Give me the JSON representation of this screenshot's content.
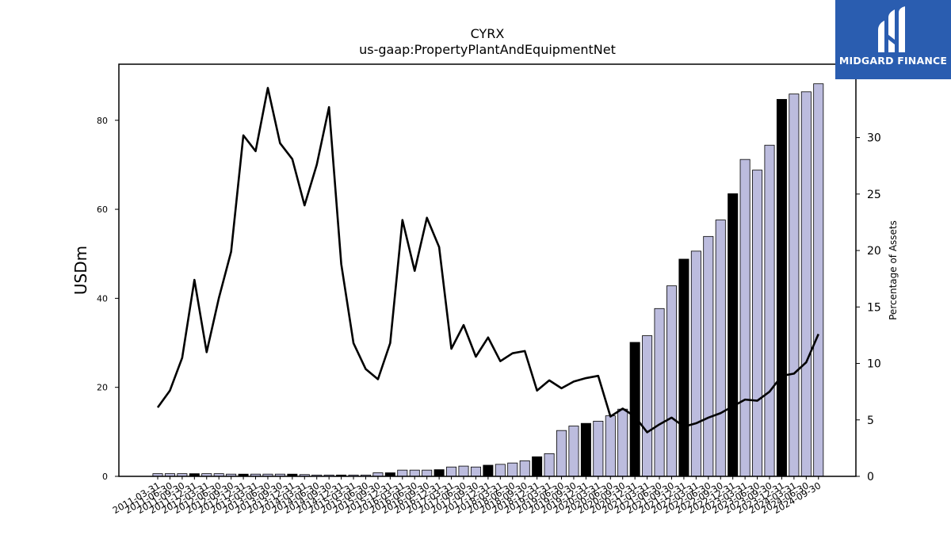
{
  "chart_data": {
    "type": "bar+line",
    "title": "CYRX",
    "subtitle": "us-gaap:PropertyPlantAndEquipmentNet",
    "ylabel": "USDm",
    "y2label": "Percentage of Assets",
    "ylim": [
      0,
      92.6
    ],
    "y2lim": [
      0,
      36.5
    ],
    "yticks": [
      0,
      20,
      40,
      60,
      80
    ],
    "y2ticks": [
      0,
      5,
      10,
      15,
      20,
      25,
      30
    ],
    "categories": [
      "2011-03-31",
      "2011-06-30",
      "2011-09-30",
      "2011-12-31",
      "2012-03-31",
      "2012-06-30",
      "2012-09-30",
      "2012-12-31",
      "2013-03-31",
      "2013-06-30",
      "2013-09-30",
      "2013-12-31",
      "2014-03-31",
      "2014-06-30",
      "2014-09-30",
      "2014-12-31",
      "2015-03-31",
      "2015-06-30",
      "2015-09-30",
      "2015-12-31",
      "2016-03-31",
      "2016-06-30",
      "2016-09-30",
      "2016-12-31",
      "2017-03-31",
      "2017-06-30",
      "2017-09-30",
      "2017-12-31",
      "2018-03-31",
      "2018-06-30",
      "2018-09-30",
      "2018-12-31",
      "2019-03-31",
      "2019-06-30",
      "2019-09-30",
      "2019-12-31",
      "2020-03-31",
      "2020-06-30",
      "2020-09-30",
      "2020-12-31",
      "2021-03-31",
      "2021-06-30",
      "2021-09-30",
      "2021-12-31",
      "2022-03-31",
      "2022-06-30",
      "2022-09-30",
      "2022-12-31",
      "2023-03-31",
      "2023-06-30",
      "2023-09-30",
      "2023-12-31",
      "2024-03-31",
      "2024-06-30",
      "2024-09-30"
    ],
    "bar_values": [
      0.6,
      0.6,
      0.6,
      0.6,
      0.6,
      0.6,
      0.5,
      0.5,
      0.5,
      0.5,
      0.5,
      0.5,
      0.4,
      0.3,
      0.3,
      0.3,
      0.3,
      0.3,
      0.8,
      0.8,
      1.4,
      1.4,
      1.4,
      1.5,
      2.1,
      2.3,
      2.1,
      2.5,
      2.7,
      3.0,
      3.5,
      4.4,
      5.1,
      10.3,
      11.3,
      11.9,
      12.4,
      13.6,
      15.1,
      30.1,
      31.6,
      37.7,
      42.8,
      48.8,
      50.6,
      53.9,
      57.6,
      63.5,
      71.2,
      68.8,
      74.4,
      84.7,
      85.9,
      86.4,
      88.2
    ],
    "bar_highlight": [
      false,
      false,
      false,
      true,
      false,
      false,
      false,
      true,
      false,
      false,
      false,
      true,
      false,
      false,
      false,
      true,
      false,
      false,
      false,
      true,
      false,
      false,
      false,
      true,
      false,
      false,
      false,
      true,
      false,
      false,
      false,
      true,
      false,
      false,
      false,
      true,
      false,
      false,
      false,
      true,
      false,
      false,
      false,
      true,
      false,
      false,
      false,
      true,
      false,
      false,
      false,
      true,
      false,
      false,
      false
    ],
    "line_values": [
      6.1,
      7.6,
      10.5,
      17.4,
      11.0,
      15.8,
      19.9,
      30.2,
      28.8,
      34.4,
      29.5,
      28.1,
      24.0,
      27.6,
      32.7,
      18.8,
      11.8,
      9.5,
      8.6,
      11.8,
      22.7,
      18.2,
      22.9,
      20.3,
      11.3,
      13.4,
      10.6,
      12.3,
      10.2,
      10.9,
      11.1,
      7.6,
      8.5,
      7.8,
      8.4,
      8.7,
      8.9,
      5.3,
      6.0,
      5.3,
      3.9,
      4.6,
      5.2,
      4.4,
      4.7,
      5.2,
      5.6,
      6.2,
      6.8,
      6.7,
      7.5,
      8.9,
      9.1,
      10.1,
      12.6
    ],
    "bar_color": "#bcbcde",
    "bar_highlight_color": "#000000",
    "line_color": "#000000",
    "grid": false,
    "legend": "none"
  },
  "logo": {
    "text": "MIDGARD FINANCE",
    "background": "#2a5db0"
  }
}
